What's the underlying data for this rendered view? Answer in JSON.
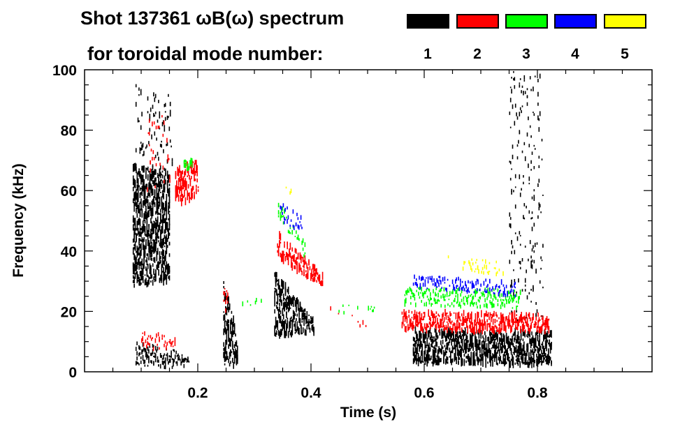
{
  "chart_data": {
    "type": "heatmap",
    "title_line1": "Shot 137361 ωB(ω) spectrum",
    "title_line2": "for toroidal mode number:",
    "xlabel": "Time (s)",
    "ylabel": "Frequency (kHz)",
    "xlim": [
      0,
      1.0
    ],
    "ylim": [
      0,
      100
    ],
    "xticks": [
      0.2,
      0.4,
      0.6,
      0.8
    ],
    "xtick_labels": [
      "0.2",
      "0.4",
      "0.6",
      "0.8"
    ],
    "yticks": [
      0,
      20,
      40,
      60,
      80,
      100
    ],
    "ytick_labels": [
      "0",
      "20",
      "40",
      "60",
      "80",
      "100"
    ],
    "legend": [
      {
        "mode": "1",
        "color": "#000000"
      },
      {
        "mode": "2",
        "color": "#ff0000"
      },
      {
        "mode": "3",
        "color": "#00ff00"
      },
      {
        "mode": "4",
        "color": "#0000ff"
      },
      {
        "mode": "5",
        "color": "#ffff00"
      }
    ],
    "features": [
      {
        "mode": 1,
        "t": [
          0.085,
          0.15
        ],
        "f_start": [
          28,
          68
        ],
        "f_end": [
          30,
          66
        ],
        "density": 1.0
      },
      {
        "mode": 1,
        "t": [
          0.09,
          0.155
        ],
        "f_start": [
          65,
          95
        ],
        "f_end": [
          65,
          92
        ],
        "density": 0.12
      },
      {
        "mode": 1,
        "t": [
          0.09,
          0.185
        ],
        "f_start": [
          2,
          10
        ],
        "f_end": [
          1,
          6
        ],
        "density": 0.55
      },
      {
        "mode": 1,
        "t": [
          0.245,
          0.27
        ],
        "f_start": [
          2,
          30
        ],
        "f_end": [
          2,
          12
        ],
        "density": 0.9
      },
      {
        "mode": 1,
        "t": [
          0.335,
          0.405
        ],
        "f_start": [
          12,
          33
        ],
        "f_end": [
          13,
          17
        ],
        "density": 0.9
      },
      {
        "mode": 1,
        "t": [
          0.58,
          0.825
        ],
        "f_start": [
          3,
          14
        ],
        "f_end": [
          2,
          13
        ],
        "density": 1.0
      },
      {
        "mode": 1,
        "t": [
          0.75,
          0.81
        ],
        "f_start": [
          17,
          100
        ],
        "f_end": [
          17,
          100
        ],
        "density": 0.12
      },
      {
        "mode": 2,
        "t": [
          0.16,
          0.2
        ],
        "f_start": [
          55,
          68
        ],
        "f_end": [
          58,
          70
        ],
        "density": 0.7
      },
      {
        "mode": 2,
        "t": [
          0.1,
          0.16
        ],
        "f_start": [
          7,
          13
        ],
        "f_end": [
          8,
          12
        ],
        "density": 0.4
      },
      {
        "mode": 2,
        "t": [
          0.11,
          0.15
        ],
        "f_start": [
          60,
          85
        ],
        "f_end": [
          60,
          85
        ],
        "density": 0.1
      },
      {
        "mode": 2,
        "t": [
          0.245,
          0.255
        ],
        "f_start": [
          20,
          28
        ],
        "f_end": [
          20,
          28
        ],
        "density": 0.5
      },
      {
        "mode": 2,
        "t": [
          0.34,
          0.42
        ],
        "f_start": [
          38,
          46
        ],
        "f_end": [
          28,
          32
        ],
        "density": 0.8
      },
      {
        "mode": 2,
        "t": [
          0.42,
          0.5
        ],
        "f_start": [
          20,
          24
        ],
        "f_end": [
          14,
          16
        ],
        "density": 0.1
      },
      {
        "mode": 2,
        "t": [
          0.56,
          0.82
        ],
        "f_start": [
          14,
          20
        ],
        "f_end": [
          13,
          19
        ],
        "density": 0.85
      },
      {
        "mode": 3,
        "t": [
          0.175,
          0.19
        ],
        "f_start": [
          67,
          70
        ],
        "f_end": [
          67,
          70
        ],
        "density": 0.8
      },
      {
        "mode": 3,
        "t": [
          0.275,
          0.32
        ],
        "f_start": [
          22,
          24
        ],
        "f_end": [
          22,
          24
        ],
        "density": 0.25
      },
      {
        "mode": 3,
        "t": [
          0.34,
          0.39
        ],
        "f_start": [
          52,
          58
        ],
        "f_end": [
          37,
          42
        ],
        "density": 0.35
      },
      {
        "mode": 3,
        "t": [
          0.44,
          0.53
        ],
        "f_start": [
          19,
          22
        ],
        "f_end": [
          19,
          22
        ],
        "density": 0.08
      },
      {
        "mode": 3,
        "t": [
          0.565,
          0.77
        ],
        "f_start": [
          22,
          28
        ],
        "f_end": [
          21,
          27
        ],
        "density": 0.6
      },
      {
        "mode": 4,
        "t": [
          0.345,
          0.385
        ],
        "f_start": [
          50,
          56
        ],
        "f_end": [
          46,
          51
        ],
        "density": 0.3
      },
      {
        "mode": 4,
        "t": [
          0.58,
          0.76
        ],
        "f_start": [
          28,
          32
        ],
        "f_end": [
          25,
          30
        ],
        "density": 0.4
      },
      {
        "mode": 5,
        "t": [
          0.35,
          0.37
        ],
        "f_start": [
          58,
          61
        ],
        "f_end": [
          58,
          61
        ],
        "density": 0.15
      },
      {
        "mode": 5,
        "t": [
          0.64,
          0.74
        ],
        "f_start": [
          34,
          39
        ],
        "f_end": [
          32,
          36
        ],
        "density": 0.25
      }
    ]
  }
}
